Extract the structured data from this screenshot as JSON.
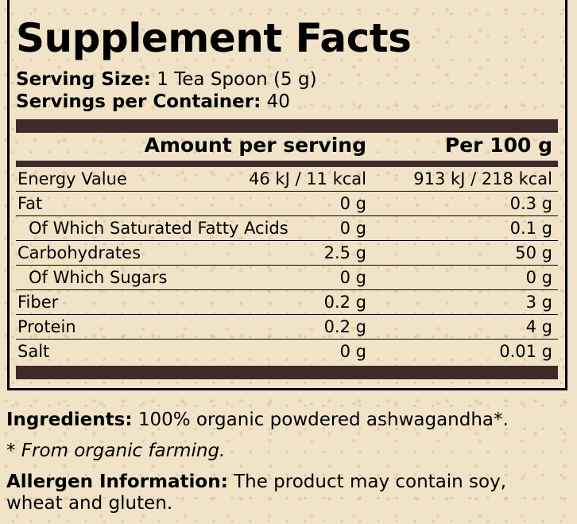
{
  "title": "Supplement Facts",
  "serving_size": {
    "label": "Serving Size:",
    "value": "1 Tea Spoon (5 g)"
  },
  "servings_per_container": {
    "label": "Servings per Container:",
    "value": "40"
  },
  "headers": {
    "per_serving": "Amount per serving",
    "per_100g": "Per 100 g"
  },
  "rows": [
    {
      "name": "Energy Value",
      "serving": "46 kJ / 11 kcal",
      "per100": "913 kJ / 218 kcal"
    },
    {
      "name": "Fat",
      "serving": "0 g",
      "per100": "0.3 g"
    },
    {
      "name": "Of Which Saturated Fatty Acids",
      "serving": "0 g",
      "per100": "0.1 g",
      "sub": true
    },
    {
      "name": "Carbohydrates",
      "serving": "2.5 g",
      "per100": "50 g"
    },
    {
      "name": "Of Which Sugars",
      "serving": "0 g",
      "per100": "0 g",
      "sub": true
    },
    {
      "name": "Fiber",
      "serving": "0.2 g",
      "per100": "3 g"
    },
    {
      "name": "Protein",
      "serving": "0.2 g",
      "per100": "4 g"
    },
    {
      "name": "Salt",
      "serving": "0 g",
      "per100": "0.01 g"
    }
  ],
  "ingredients": {
    "label": "Ingredients:",
    "value": "100% organic powdered ashwagandha*."
  },
  "footnote": "* From organic farming.",
  "allergen": {
    "label": "Allergen Information:",
    "value": "The product may contain soy,",
    "value2": "wheat and gluten."
  },
  "colors": {
    "bar": "#3f2a29",
    "background": "#f1e3c8"
  }
}
